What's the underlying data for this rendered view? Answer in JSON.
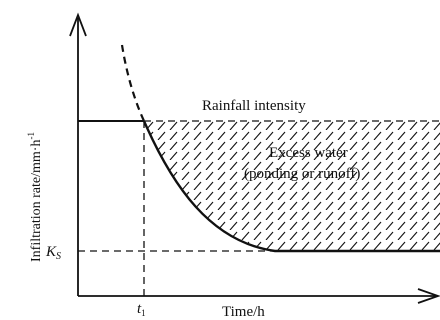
{
  "figure": {
    "y_axis_label": "Infiltration rate/mm·h",
    "y_axis_unit_exponent": "-1",
    "x_axis_label": "Time/h",
    "curve_label": "Rainfall intensity",
    "region_label_line1": "Excess water",
    "region_label_line2": "(ponding or runoff)",
    "ks_symbol": "K",
    "ks_subscript": "S",
    "t1_symbol": "t",
    "t1_subscript": "1"
  }
}
